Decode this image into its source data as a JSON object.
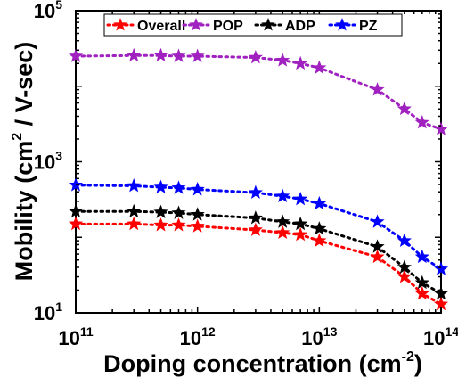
{
  "chart_data": {
    "type": "line",
    "xlabel": "Doping concentration (cm",
    "xlabel_sup": "-2",
    "xlabel_end": ")",
    "ylabel": "Mobility (cm",
    "ylabel_sup": "2",
    "ylabel_end": " / V-sec)",
    "x_scale": "log",
    "y_scale": "log",
    "xlim": [
      100000000000.0,
      100000000000000.0
    ],
    "ylim": [
      10,
      100000
    ],
    "grid": false,
    "legend_position": "top",
    "x_ticks": [
      {
        "value": 100000000000.0,
        "base": "10",
        "exp": "11"
      },
      {
        "value": 1000000000000.0,
        "base": "10",
        "exp": "12"
      },
      {
        "value": 10000000000000.0,
        "base": "10",
        "exp": "13"
      },
      {
        "value": 100000000000000.0,
        "base": "10",
        "exp": "14"
      }
    ],
    "y_ticks": [
      {
        "value": 10,
        "base": "10",
        "exp": "1"
      },
      {
        "value": 1000,
        "base": "10",
        "exp": "3"
      },
      {
        "value": 100000,
        "base": "10",
        "exp": "5"
      }
    ],
    "x": [
      100000000000.0,
      300000000000.0,
      500000000000.0,
      700000000000.0,
      1000000000000.0,
      3000000000000.0,
      5000000000000.0,
      7000000000000.0,
      10000000000000.0,
      30000000000000.0,
      50000000000000.0,
      70000000000000.0,
      100000000000000.0
    ],
    "series": [
      {
        "name": "Overall",
        "color": "#ff0000",
        "values": [
          150,
          150,
          145,
          145,
          140,
          125,
          115,
          108,
          90,
          55,
          30,
          18,
          13
        ]
      },
      {
        "name": "POP",
        "color": "#a020c0",
        "values": [
          25000,
          25500,
          25500,
          25000,
          25000,
          24000,
          22000,
          20000,
          17500,
          9000,
          5000,
          3300,
          2700
        ]
      },
      {
        "name": "ADP",
        "color": "#000000",
        "values": [
          220,
          220,
          215,
          210,
          200,
          180,
          160,
          150,
          130,
          75,
          40,
          25,
          18
        ]
      },
      {
        "name": "PZ",
        "color": "#0000ff",
        "values": [
          490,
          480,
          460,
          450,
          430,
          390,
          350,
          320,
          280,
          160,
          90,
          55,
          38
        ]
      }
    ]
  }
}
